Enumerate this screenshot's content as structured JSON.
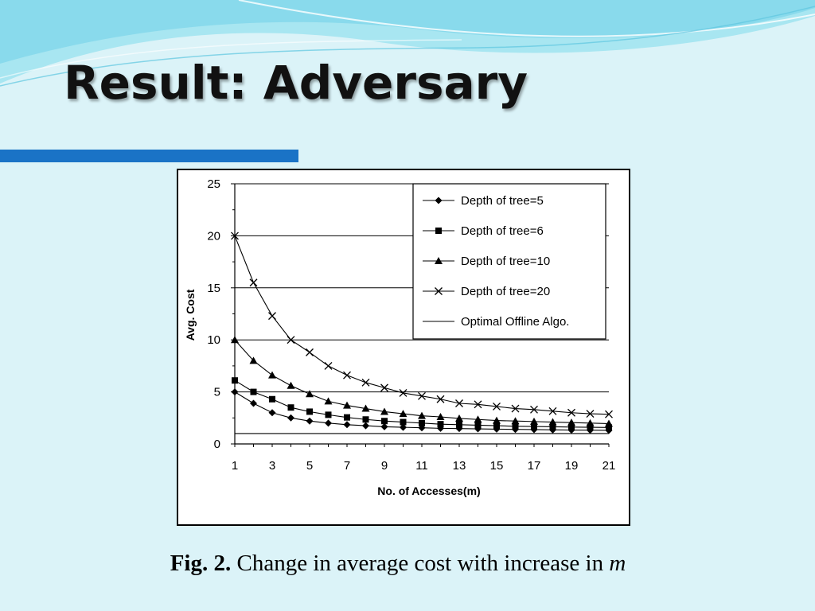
{
  "slide": {
    "title": "Result: Adversary",
    "caption_prefix": "Fig. 2.",
    "caption_text": "Change in average cost with increase in",
    "caption_var": "m",
    "colors": {
      "background": "#dbf3f8",
      "accent_bar": "#1a73c6",
      "wave_light": "#9fe3ef",
      "wave_dark": "#4fc0e0"
    }
  },
  "chart_data": {
    "type": "line",
    "title": "",
    "xlabel": "No. of Accesses(m)",
    "ylabel": "Avg. Cost",
    "x": [
      1,
      2,
      3,
      4,
      5,
      6,
      7,
      8,
      9,
      10,
      11,
      12,
      13,
      14,
      15,
      16,
      17,
      18,
      19,
      20,
      21
    ],
    "xticks": [
      1,
      3,
      5,
      7,
      9,
      11,
      13,
      15,
      17,
      19,
      21
    ],
    "yticks": [
      0,
      5,
      10,
      15,
      20,
      25
    ],
    "xlim": [
      1,
      21
    ],
    "ylim": [
      0,
      25
    ],
    "grid": "horizontal",
    "legend_position": "top-right",
    "series": [
      {
        "name": "Depth of tree=5",
        "marker": "diamond",
        "values": [
          5.0,
          3.9,
          3.0,
          2.5,
          2.2,
          2.0,
          1.85,
          1.75,
          1.65,
          1.6,
          1.55,
          1.5,
          1.48,
          1.45,
          1.42,
          1.4,
          1.38,
          1.35,
          1.33,
          1.32,
          1.3
        ]
      },
      {
        "name": "Depth of tree=6",
        "marker": "square",
        "values": [
          6.1,
          5.0,
          4.3,
          3.5,
          3.1,
          2.8,
          2.55,
          2.35,
          2.2,
          2.1,
          2.0,
          1.9,
          1.85,
          1.8,
          1.75,
          1.7,
          1.68,
          1.65,
          1.62,
          1.6,
          1.58
        ]
      },
      {
        "name": "Depth of tree=10",
        "marker": "triangle",
        "values": [
          10.0,
          8.0,
          6.6,
          5.6,
          4.8,
          4.1,
          3.7,
          3.4,
          3.1,
          2.9,
          2.7,
          2.6,
          2.45,
          2.35,
          2.25,
          2.2,
          2.15,
          2.1,
          2.05,
          2.0,
          1.95
        ]
      },
      {
        "name": "Depth of tree=20",
        "marker": "x",
        "values": [
          20.0,
          15.5,
          12.3,
          10.0,
          8.8,
          7.5,
          6.6,
          5.9,
          5.4,
          4.9,
          4.6,
          4.3,
          3.9,
          3.8,
          3.6,
          3.4,
          3.3,
          3.15,
          3.0,
          2.9,
          2.85
        ]
      },
      {
        "name": "Optimal Offline Algo.",
        "marker": "none",
        "values": [
          1,
          1,
          1,
          1,
          1,
          1,
          1,
          1,
          1,
          1,
          1,
          1,
          1,
          1,
          1,
          1,
          1,
          1,
          1,
          1,
          1
        ]
      }
    ]
  }
}
